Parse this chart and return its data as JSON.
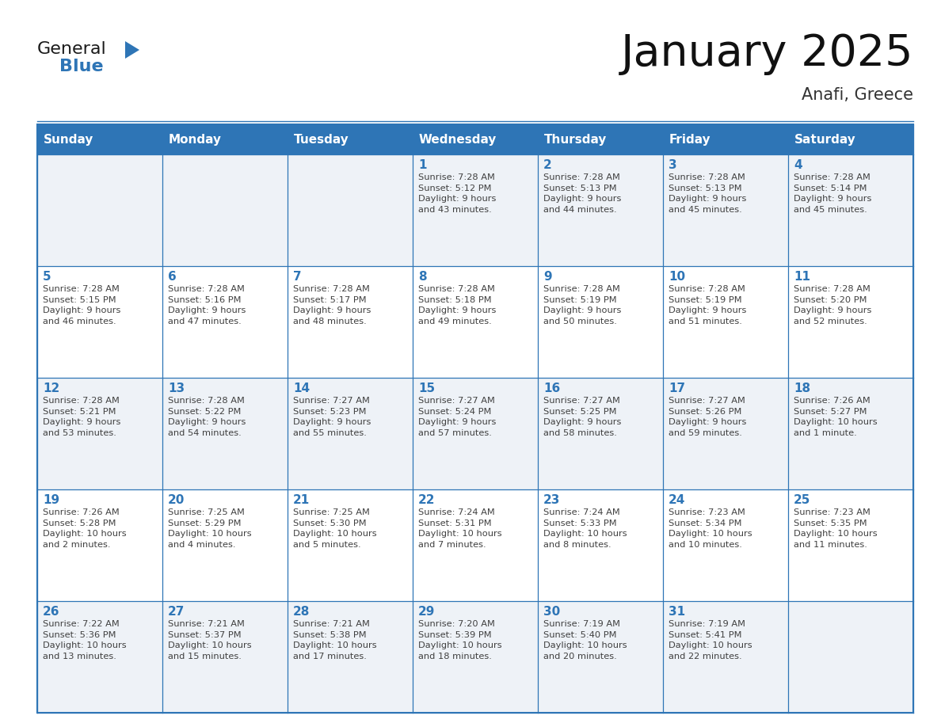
{
  "title": "January 2025",
  "subtitle": "Anafi, Greece",
  "days_of_week": [
    "Sunday",
    "Monday",
    "Tuesday",
    "Wednesday",
    "Thursday",
    "Friday",
    "Saturday"
  ],
  "header_bg_color": "#2E75B6",
  "header_text_color": "#FFFFFF",
  "cell_bg_even": "#FFFFFF",
  "cell_bg_odd": "#EEF2F7",
  "border_color": "#2E75B6",
  "day_number_color": "#2E75B6",
  "text_color": "#404040",
  "title_color": "#111111",
  "subtitle_color": "#333333",
  "logo_general_color": "#1A1A1A",
  "logo_blue_color": "#2E75B6",
  "calendar_data": [
    [
      {
        "day": null,
        "sunrise": null,
        "sunset": null,
        "daylight": null
      },
      {
        "day": null,
        "sunrise": null,
        "sunset": null,
        "daylight": null
      },
      {
        "day": null,
        "sunrise": null,
        "sunset": null,
        "daylight": null
      },
      {
        "day": 1,
        "sunrise": "7:28 AM",
        "sunset": "5:12 PM",
        "daylight": "9 hours\nand 43 minutes."
      },
      {
        "day": 2,
        "sunrise": "7:28 AM",
        "sunset": "5:13 PM",
        "daylight": "9 hours\nand 44 minutes."
      },
      {
        "day": 3,
        "sunrise": "7:28 AM",
        "sunset": "5:13 PM",
        "daylight": "9 hours\nand 45 minutes."
      },
      {
        "day": 4,
        "sunrise": "7:28 AM",
        "sunset": "5:14 PM",
        "daylight": "9 hours\nand 45 minutes."
      }
    ],
    [
      {
        "day": 5,
        "sunrise": "7:28 AM",
        "sunset": "5:15 PM",
        "daylight": "9 hours\nand 46 minutes."
      },
      {
        "day": 6,
        "sunrise": "7:28 AM",
        "sunset": "5:16 PM",
        "daylight": "9 hours\nand 47 minutes."
      },
      {
        "day": 7,
        "sunrise": "7:28 AM",
        "sunset": "5:17 PM",
        "daylight": "9 hours\nand 48 minutes."
      },
      {
        "day": 8,
        "sunrise": "7:28 AM",
        "sunset": "5:18 PM",
        "daylight": "9 hours\nand 49 minutes."
      },
      {
        "day": 9,
        "sunrise": "7:28 AM",
        "sunset": "5:19 PM",
        "daylight": "9 hours\nand 50 minutes."
      },
      {
        "day": 10,
        "sunrise": "7:28 AM",
        "sunset": "5:19 PM",
        "daylight": "9 hours\nand 51 minutes."
      },
      {
        "day": 11,
        "sunrise": "7:28 AM",
        "sunset": "5:20 PM",
        "daylight": "9 hours\nand 52 minutes."
      }
    ],
    [
      {
        "day": 12,
        "sunrise": "7:28 AM",
        "sunset": "5:21 PM",
        "daylight": "9 hours\nand 53 minutes."
      },
      {
        "day": 13,
        "sunrise": "7:28 AM",
        "sunset": "5:22 PM",
        "daylight": "9 hours\nand 54 minutes."
      },
      {
        "day": 14,
        "sunrise": "7:27 AM",
        "sunset": "5:23 PM",
        "daylight": "9 hours\nand 55 minutes."
      },
      {
        "day": 15,
        "sunrise": "7:27 AM",
        "sunset": "5:24 PM",
        "daylight": "9 hours\nand 57 minutes."
      },
      {
        "day": 16,
        "sunrise": "7:27 AM",
        "sunset": "5:25 PM",
        "daylight": "9 hours\nand 58 minutes."
      },
      {
        "day": 17,
        "sunrise": "7:27 AM",
        "sunset": "5:26 PM",
        "daylight": "9 hours\nand 59 minutes."
      },
      {
        "day": 18,
        "sunrise": "7:26 AM",
        "sunset": "5:27 PM",
        "daylight": "10 hours\nand 1 minute."
      }
    ],
    [
      {
        "day": 19,
        "sunrise": "7:26 AM",
        "sunset": "5:28 PM",
        "daylight": "10 hours\nand 2 minutes."
      },
      {
        "day": 20,
        "sunrise": "7:25 AM",
        "sunset": "5:29 PM",
        "daylight": "10 hours\nand 4 minutes."
      },
      {
        "day": 21,
        "sunrise": "7:25 AM",
        "sunset": "5:30 PM",
        "daylight": "10 hours\nand 5 minutes."
      },
      {
        "day": 22,
        "sunrise": "7:24 AM",
        "sunset": "5:31 PM",
        "daylight": "10 hours\nand 7 minutes."
      },
      {
        "day": 23,
        "sunrise": "7:24 AM",
        "sunset": "5:33 PM",
        "daylight": "10 hours\nand 8 minutes."
      },
      {
        "day": 24,
        "sunrise": "7:23 AM",
        "sunset": "5:34 PM",
        "daylight": "10 hours\nand 10 minutes."
      },
      {
        "day": 25,
        "sunrise": "7:23 AM",
        "sunset": "5:35 PM",
        "daylight": "10 hours\nand 11 minutes."
      }
    ],
    [
      {
        "day": 26,
        "sunrise": "7:22 AM",
        "sunset": "5:36 PM",
        "daylight": "10 hours\nand 13 minutes."
      },
      {
        "day": 27,
        "sunrise": "7:21 AM",
        "sunset": "5:37 PM",
        "daylight": "10 hours\nand 15 minutes."
      },
      {
        "day": 28,
        "sunrise": "7:21 AM",
        "sunset": "5:38 PM",
        "daylight": "10 hours\nand 17 minutes."
      },
      {
        "day": 29,
        "sunrise": "7:20 AM",
        "sunset": "5:39 PM",
        "daylight": "10 hours\nand 18 minutes."
      },
      {
        "day": 30,
        "sunrise": "7:19 AM",
        "sunset": "5:40 PM",
        "daylight": "10 hours\nand 20 minutes."
      },
      {
        "day": 31,
        "sunrise": "7:19 AM",
        "sunset": "5:41 PM",
        "daylight": "10 hours\nand 22 minutes."
      },
      {
        "day": null,
        "sunrise": null,
        "sunset": null,
        "daylight": null
      }
    ]
  ]
}
